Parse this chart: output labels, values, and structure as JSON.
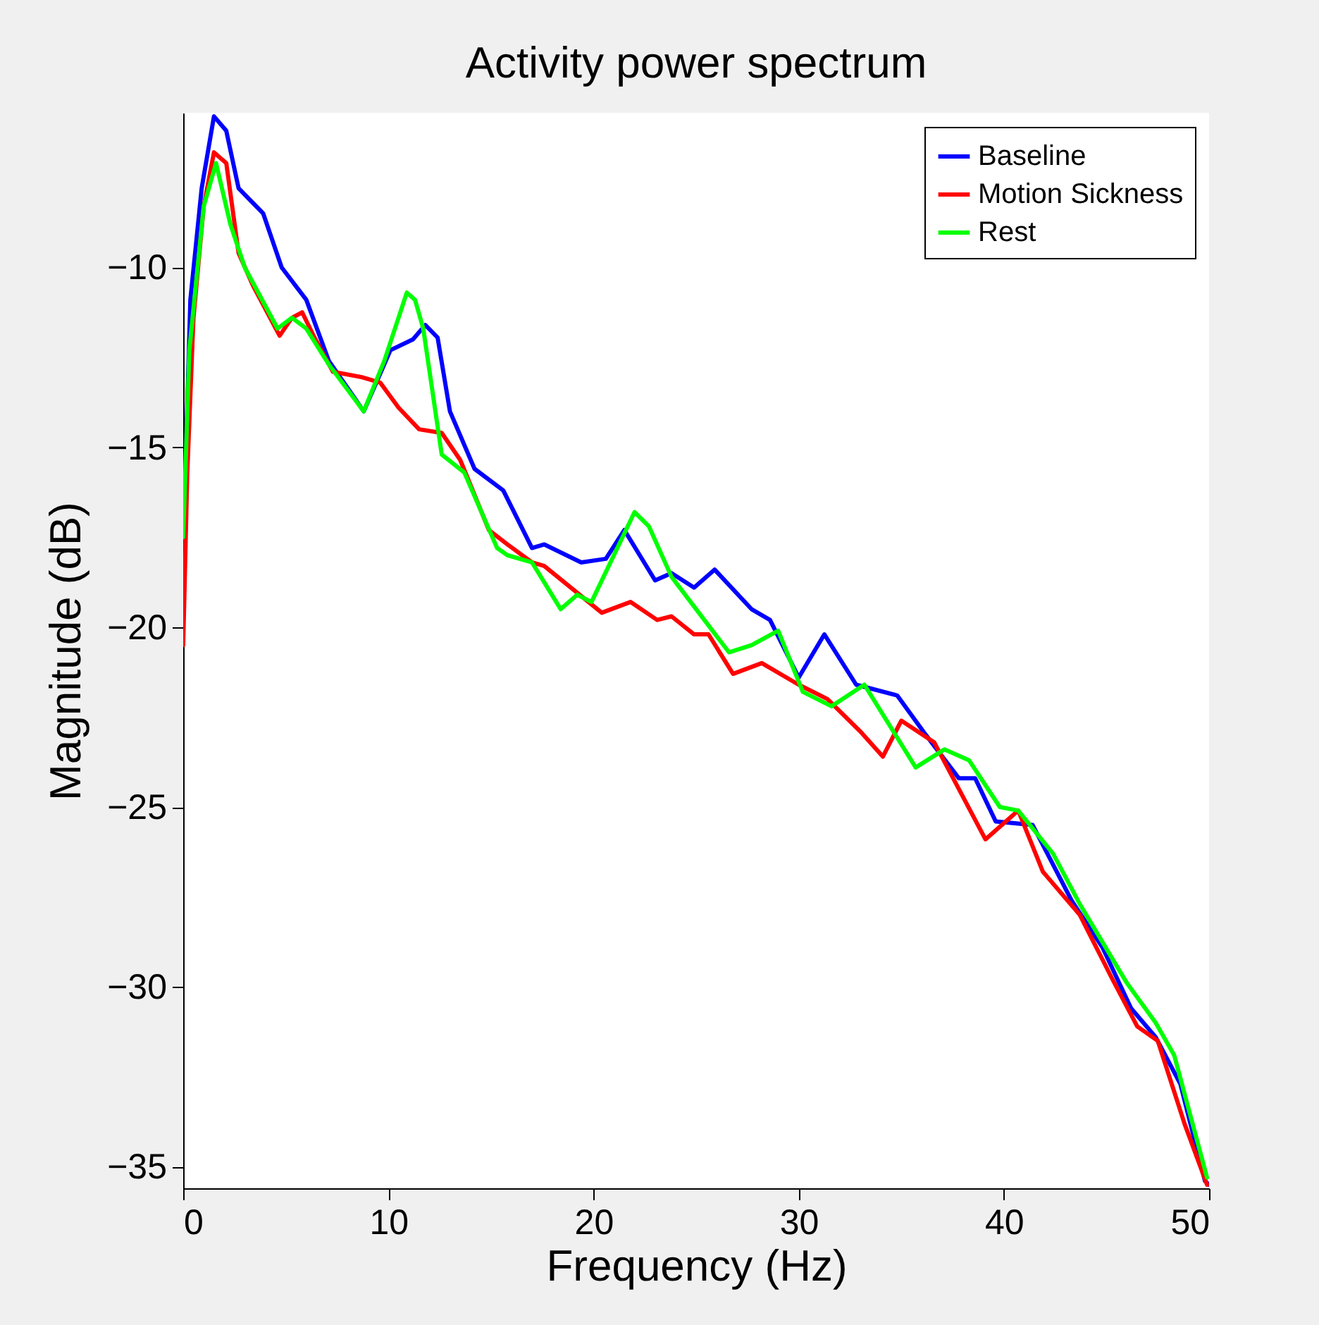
{
  "chart_data": {
    "type": "line",
    "title": "Activity power spectrum",
    "xlabel": "Frequency (Hz)",
    "ylabel": "Magnitude (dB)",
    "xlim": [
      0,
      50
    ],
    "xticks": [
      0,
      10,
      20,
      30,
      40,
      50
    ],
    "ylim": [
      -35.6,
      -5.7
    ],
    "yticks": [
      -35,
      -30,
      -25,
      -20,
      -15,
      -10
    ],
    "grid": false,
    "legend": "top right",
    "line_style": "solid",
    "marker": "none",
    "series": [
      {
        "name": "Baseline",
        "color": "#0000ff",
        "x": [
          0,
          0.35,
          0.9,
          1.5,
          2.1,
          2.7,
          3.9,
          4.8,
          6.0,
          7.1,
          8.8,
          10.1,
          11.2,
          11.8,
          12.4,
          13.0,
          14.2,
          15.6,
          17.0,
          17.6,
          19.4,
          20.6,
          21.5,
          23.0,
          23.8,
          24.9,
          25.9,
          27.7,
          28.6,
          30.0,
          31.25,
          32.8,
          34.8,
          36.2,
          37.8,
          38.6,
          39.6,
          41.4,
          43.3,
          44.8,
          46.2,
          47.4,
          48.6,
          49.8,
          50
        ],
        "values": [
          -17.7,
          -10.9,
          -7.8,
          -5.8,
          -6.2,
          -7.8,
          -8.5,
          -10.0,
          -10.9,
          -12.6,
          -14.0,
          -12.3,
          -12.0,
          -11.6,
          -11.95,
          -14.0,
          -15.6,
          -16.2,
          -17.8,
          -17.7,
          -18.2,
          -18.1,
          -17.3,
          -18.7,
          -18.5,
          -18.9,
          -18.4,
          -19.5,
          -19.8,
          -21.4,
          -20.2,
          -21.6,
          -21.9,
          -23.0,
          -24.2,
          -24.2,
          -25.4,
          -25.5,
          -27.6,
          -28.9,
          -30.6,
          -31.4,
          -32.7,
          -35.4,
          -35.5
        ]
      },
      {
        "name": "Motion Sickness",
        "color": "#ff0000",
        "x": [
          0,
          0.2,
          0.5,
          1.0,
          1.5,
          2.1,
          2.7,
          3.4,
          4.7,
          5.3,
          5.8,
          6.4,
          7.3,
          8.7,
          9.6,
          10.5,
          11.5,
          12.6,
          13.5,
          14.9,
          15.8,
          17.0,
          17.6,
          20.4,
          21.8,
          23.1,
          23.8,
          24.9,
          25.6,
          26.8,
          28.2,
          30.0,
          31.4,
          33.0,
          34.1,
          35.0,
          36.6,
          39.1,
          40.7,
          41.9,
          43.7,
          45.3,
          46.5,
          47.5,
          48.8,
          49.9
        ],
        "values": [
          -20.5,
          -15.7,
          -11.4,
          -8.3,
          -6.8,
          -7.1,
          -9.6,
          -10.5,
          -11.9,
          -11.4,
          -11.25,
          -11.95,
          -12.9,
          -13.05,
          -13.2,
          -13.9,
          -14.5,
          -14.6,
          -15.35,
          -17.3,
          -17.7,
          -18.2,
          -18.3,
          -19.6,
          -19.3,
          -19.8,
          -19.7,
          -20.2,
          -20.2,
          -21.3,
          -21.0,
          -21.6,
          -22.0,
          -22.9,
          -23.6,
          -22.6,
          -23.2,
          -25.9,
          -25.1,
          -26.8,
          -28.0,
          -29.8,
          -31.1,
          -31.5,
          -33.8,
          -35.5
        ]
      },
      {
        "name": "Rest",
        "color": "#00ff00",
        "x": [
          0,
          0.3,
          1.0,
          1.6,
          2.3,
          3.0,
          4.6,
          5.3,
          6.0,
          7.1,
          8.8,
          9.8,
          10.9,
          11.3,
          11.7,
          12.6,
          13.7,
          15.3,
          15.8,
          17.0,
          18.4,
          19.2,
          19.9,
          22.0,
          22.7,
          23.8,
          25.4,
          26.6,
          27.7,
          29.0,
          30.2,
          31.6,
          33.2,
          35.7,
          37.1,
          38.3,
          39.8,
          40.7,
          42.4,
          43.7,
          46.0,
          47.4,
          48.3,
          49.9
        ],
        "values": [
          -17.5,
          -12.3,
          -8.3,
          -7.1,
          -8.8,
          -10.0,
          -11.7,
          -11.4,
          -11.7,
          -12.7,
          -14.0,
          -12.6,
          -10.7,
          -10.9,
          -11.7,
          -15.2,
          -15.7,
          -17.8,
          -18.0,
          -18.2,
          -19.5,
          -19.1,
          -19.3,
          -16.8,
          -17.2,
          -18.6,
          -19.8,
          -20.7,
          -20.5,
          -20.1,
          -21.8,
          -22.2,
          -21.6,
          -23.9,
          -23.4,
          -23.7,
          -25.0,
          -25.1,
          -26.3,
          -27.7,
          -29.9,
          -31.0,
          -31.9,
          -35.3
        ]
      }
    ]
  }
}
